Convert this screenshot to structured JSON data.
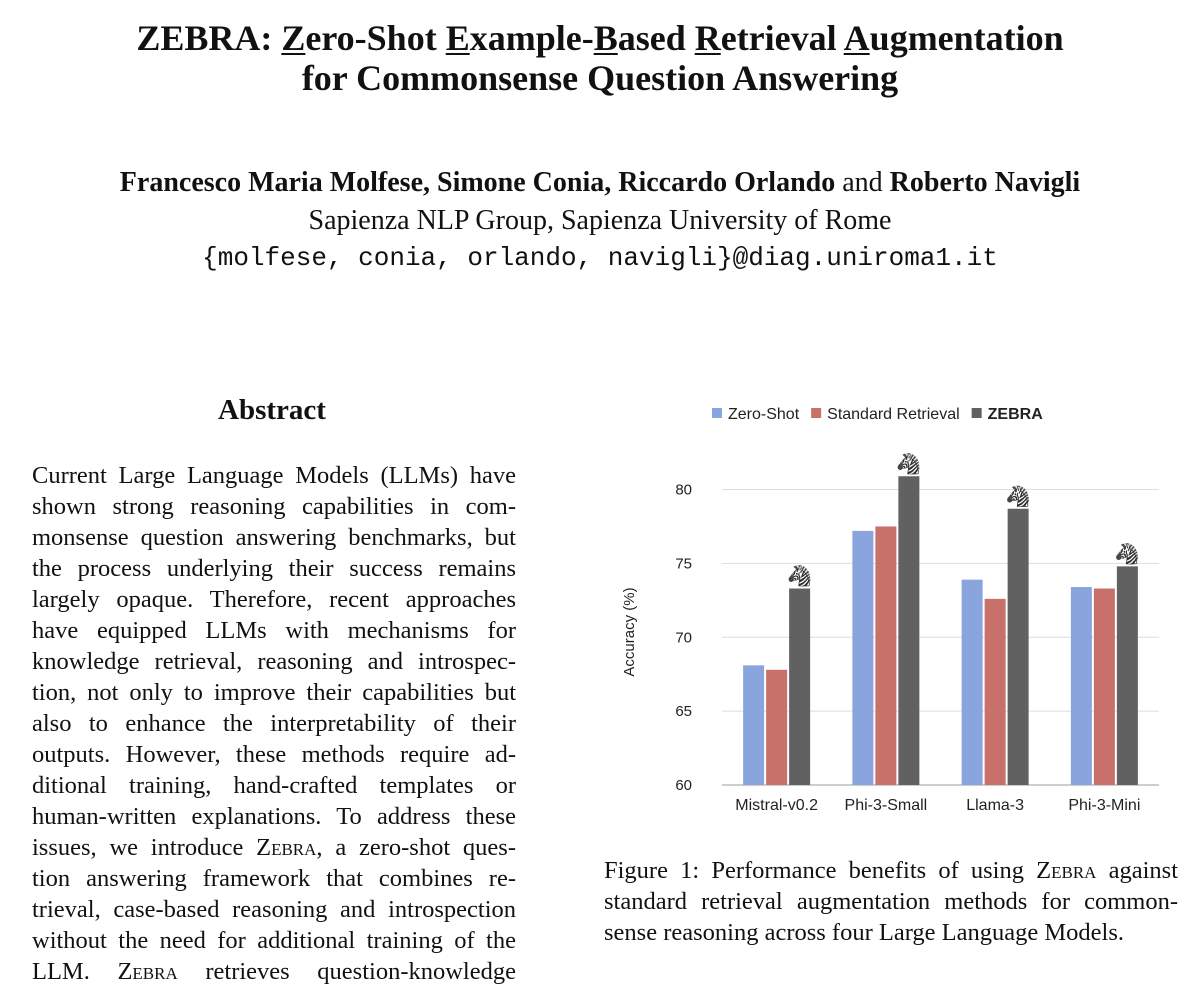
{
  "paper": {
    "title_line1": [
      {
        "text": "ZEBRA: ",
        "u": false
      },
      {
        "text": "Z",
        "u": true
      },
      {
        "text": "ero-Shot ",
        "u": false
      },
      {
        "text": "E",
        "u": true
      },
      {
        "text": "xample-",
        "u": false
      },
      {
        "text": "B",
        "u": true
      },
      {
        "text": "ased ",
        "u": false
      },
      {
        "text": "R",
        "u": true
      },
      {
        "text": "etrieval ",
        "u": false
      },
      {
        "text": "A",
        "u": true
      },
      {
        "text": "ugmentation",
        "u": false
      }
    ],
    "title_line2": "for Commonsense Question Answering",
    "authors": {
      "list": "Francesco Maria Molfese, Simone Conia, Riccardo Orlando",
      "conjunction": "and",
      "last": "Roberto Navigli"
    },
    "affiliation": "Sapienza NLP Group, Sapienza University of Rome",
    "email": "{molfese, conia, orlando, navigli}@diag.uniroma1.it",
    "abstract_heading": "Abstract",
    "abstract_lines": [
      [
        {
          "t": "Current Large Language Models (LLMs) have"
        }
      ],
      [
        {
          "t": "shown strong reasoning capabilities in com-"
        }
      ],
      [
        {
          "t": "monsense question answering benchmarks, but"
        }
      ],
      [
        {
          "t": "the process underlying their success remains"
        }
      ],
      [
        {
          "t": "largely opaque. Therefore, recent approaches"
        }
      ],
      [
        {
          "t": "have equipped LLMs with mechanisms for"
        }
      ],
      [
        {
          "t": "knowledge retrieval, reasoning and introspec-"
        }
      ],
      [
        {
          "t": "tion, not only to improve their capabilities but"
        }
      ],
      [
        {
          "t": "also to enhance the interpretability of their"
        }
      ],
      [
        {
          "t": "outputs. However, these methods require ad-"
        }
      ],
      [
        {
          "t": "ditional training, hand-crafted templates or"
        }
      ],
      [
        {
          "t": "human-written explanations. To address these"
        }
      ],
      [
        {
          "t": "issues, we introduce "
        },
        {
          "t": "Zebra",
          "sc": true
        },
        {
          "t": ", a zero-shot ques-"
        }
      ],
      [
        {
          "t": "tion answering framework that combines re-"
        }
      ],
      [
        {
          "t": "trieval, case-based reasoning and introspection"
        }
      ],
      [
        {
          "t": "without the need for additional training of the"
        }
      ],
      [
        {
          "t": "LLM. "
        },
        {
          "t": "Zebra",
          "sc": true
        },
        {
          "t": " retrieves question-knowledge"
        }
      ]
    ],
    "caption_lines": [
      [
        {
          "t": "Figure 1: Performance benefits of using "
        },
        {
          "t": "Zebra",
          "sc": true
        },
        {
          "t": " against"
        }
      ],
      [
        {
          "t": "standard retrieval augmentation methods for common-"
        }
      ],
      [
        {
          "t": "sense reasoning across four Large Language Models."
        }
      ]
    ]
  },
  "chart_data": {
    "type": "bar",
    "title": "",
    "xlabel": "",
    "ylabel": "Accuracy (%)",
    "ylim": [
      60,
      82
    ],
    "yticks": [
      60,
      65,
      70,
      75,
      80
    ],
    "grid": true,
    "legend_placement": "top",
    "categories": [
      "Mistral-v0.2",
      "Phi-3-Small",
      "Llama-3",
      "Phi-3-Mini"
    ],
    "series": [
      {
        "name": "Zero-Shot",
        "color": "#8aa4de",
        "values": [
          68.1,
          77.2,
          73.9,
          73.4
        ]
      },
      {
        "name": "Standard Retrieval",
        "color": "#c8716a",
        "values": [
          67.8,
          77.5,
          72.6,
          73.3
        ]
      },
      {
        "name": "ZEBRA",
        "color": "#616161",
        "values": [
          73.3,
          80.9,
          78.7,
          74.8
        ],
        "bold_legend": true,
        "marker_icon": "zebra-icon"
      }
    ]
  }
}
